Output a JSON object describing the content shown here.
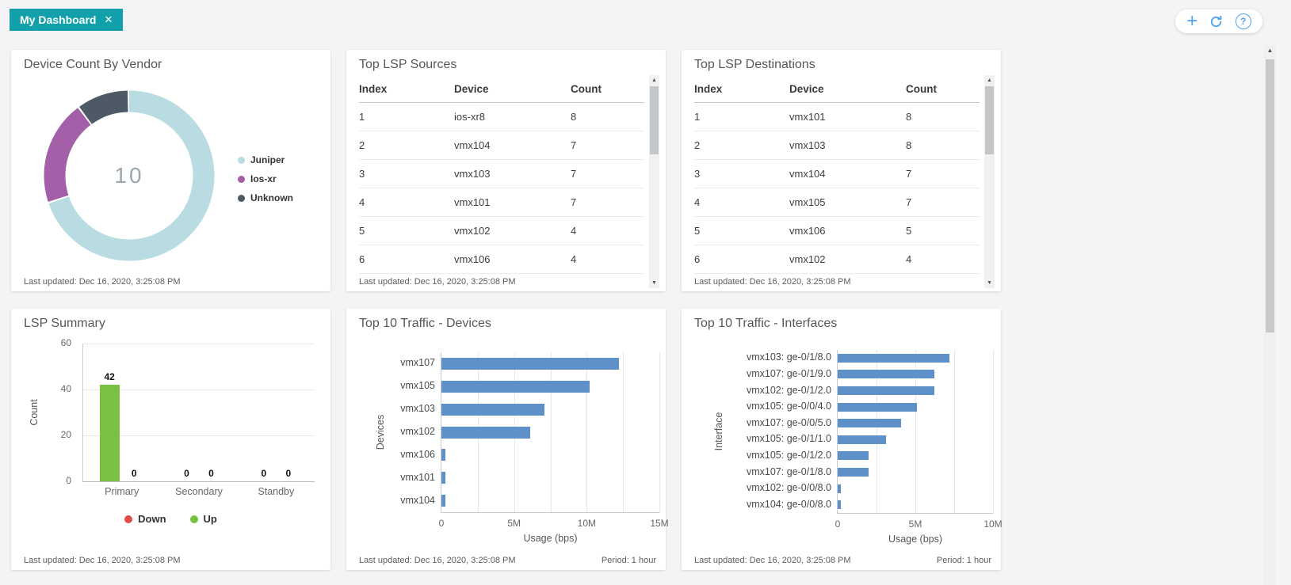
{
  "header": {
    "tab_label": "My Dashboard",
    "close_glyph": "✕",
    "add_glyph": "+",
    "help_glyph": "?"
  },
  "glyphs": {
    "scroll_up": "▲",
    "scroll_down": "▼"
  },
  "colors": {
    "accent_teal": "#12a1aa",
    "icon_blue": "#4aa4f2",
    "bar_blue": "#5e90c9",
    "up_green": "#7ac143",
    "down_red": "#e6494d"
  },
  "panels": {
    "vendor": {
      "title": "Device Count By Vendor",
      "last_updated": "Last updated: Dec 16, 2020, 3:25:08 PM",
      "chart": {
        "type": "donut",
        "total_label": "10",
        "slices": [
          {
            "label": "Juniper",
            "value": 7,
            "color": "#b9dce3"
          },
          {
            "label": "Ios-xr",
            "value": 2,
            "color": "#a45fa9"
          },
          {
            "label": "Unknown",
            "value": 1,
            "color": "#4d5a66"
          }
        ]
      }
    },
    "sources": {
      "title": "Top LSP Sources",
      "columns": [
        "Index",
        "Device",
        "Count"
      ],
      "rows": [
        [
          "1",
          "ios-xr8",
          "8"
        ],
        [
          "2",
          "vmx104",
          "7"
        ],
        [
          "3",
          "vmx103",
          "7"
        ],
        [
          "4",
          "vmx101",
          "7"
        ],
        [
          "5",
          "vmx102",
          "4"
        ],
        [
          "6",
          "vmx106",
          "4"
        ]
      ],
      "last_updated": "Last updated: Dec 16, 2020, 3:25:08 PM"
    },
    "destinations": {
      "title": "Top LSP Destinations",
      "columns": [
        "Index",
        "Device",
        "Count"
      ],
      "rows": [
        [
          "1",
          "vmx101",
          "8"
        ],
        [
          "2",
          "vmx103",
          "8"
        ],
        [
          "3",
          "vmx104",
          "7"
        ],
        [
          "4",
          "vmx105",
          "7"
        ],
        [
          "5",
          "vmx106",
          "5"
        ],
        [
          "6",
          "vmx102",
          "4"
        ]
      ],
      "last_updated": "Last updated: Dec 16, 2020, 3:25:08 PM"
    },
    "summary": {
      "title": "LSP Summary",
      "last_updated": "Last updated: Dec 16, 2020, 3:25:08 PM",
      "chart": {
        "type": "bar",
        "categories": [
          "Primary",
          "Secondary",
          "Standby"
        ],
        "series": [
          {
            "name": "Up",
            "color": "#7ac143",
            "values": [
              42,
              0,
              0
            ]
          },
          {
            "name": "Down",
            "color": "#e6494d",
            "values": [
              0,
              0,
              0
            ]
          }
        ],
        "legend": [
          {
            "label": "Down",
            "color": "#e6494d"
          },
          {
            "label": "Up",
            "color": "#7ac143"
          }
        ],
        "ylabel": "Count",
        "ylim": [
          0,
          60
        ],
        "yticks": [
          0,
          20,
          40,
          60
        ]
      }
    },
    "traffic_devices": {
      "title": "Top 10 Traffic - Devices",
      "last_updated": "Last updated: Dec 16, 2020, 3:25:08 PM",
      "period": "Period: 1 hour",
      "chart": {
        "type": "hbar",
        "categories": [
          "vmx107",
          "vmx105",
          "vmx103",
          "vmx102",
          "vmx106",
          "vmx101",
          "vmx104"
        ],
        "values_m": [
          12.2,
          10.2,
          7.1,
          6.1,
          0.25,
          0.25,
          0.25
        ],
        "unit": "bps",
        "xmax_m": 15,
        "grid_step_m": 2.5,
        "xticks": [
          "0",
          "5M",
          "10M",
          "15M"
        ],
        "bar_color": "#5e90c9",
        "xlabel": "Usage (bps)",
        "ylabel": "Devices"
      }
    },
    "traffic_interfaces": {
      "title": "Top 10 Traffic - Interfaces",
      "last_updated": "Last updated: Dec 16, 2020, 3:25:08 PM",
      "period": "Period: 1 hour",
      "chart": {
        "type": "hbar",
        "categories": [
          "vmx103: ge-0/1/8.0",
          "vmx107: ge-0/1/9.0",
          "vmx102: ge-0/1/2.0",
          "vmx105: ge-0/0/4.0",
          "vmx107: ge-0/0/5.0",
          "vmx105: ge-0/1/1.0",
          "vmx105: ge-0/1/2.0",
          "vmx107: ge-0/1/8.0",
          "vmx102: ge-0/0/8.0",
          "vmx104: ge-0/0/8.0"
        ],
        "values_m": [
          7.2,
          6.2,
          6.2,
          5.1,
          4.1,
          3.1,
          2.0,
          2.0,
          0.2,
          0.2
        ],
        "unit": "bps",
        "xmax_m": 10,
        "grid_step_m": 2.5,
        "xticks": [
          "0",
          "5M",
          "10M"
        ],
        "bar_color": "#5e90c9",
        "xlabel": "Usage (bps)",
        "ylabel": "Interface"
      }
    }
  }
}
